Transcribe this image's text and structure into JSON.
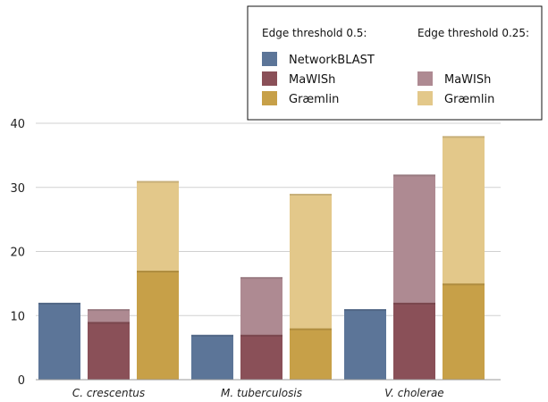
{
  "chart_data": {
    "type": "bar",
    "categories": [
      "C. crescentus",
      "M. tuberculosis",
      "V. cholerae"
    ],
    "ylim": [
      0,
      40
    ],
    "yticks": [
      0,
      10,
      20,
      30,
      40
    ],
    "grid": true,
    "legend_position": "top-right",
    "legend": {
      "group_heads": [
        "Edge threshold 0.5:",
        "Edge threshold 0.25:"
      ],
      "items": [
        {
          "label": "NetworkBLAST",
          "color": "#5c7598",
          "group": 0
        },
        {
          "label": "MaWISh",
          "color": "#8a5058",
          "group": 0
        },
        {
          "label": "Græmlin",
          "color": "#c7a048",
          "group": 0
        },
        {
          "label": "MaWISh",
          "color": "#ae8a92",
          "group": 1
        },
        {
          "label": "Græmlin",
          "color": "#e3c88a",
          "group": 1
        }
      ]
    },
    "series": [
      {
        "name": "NetworkBLAST",
        "threshold": "0.5",
        "values": [
          12,
          7,
          11
        ],
        "color": "#5c7598"
      },
      {
        "name": "MaWISh",
        "threshold": "0.5",
        "values": [
          9,
          7,
          12
        ],
        "color": "#8a5058"
      },
      {
        "name": "MaWISh",
        "threshold": "0.25",
        "values": [
          11,
          16,
          32
        ],
        "color": "#ae8a92"
      },
      {
        "name": "Græmlin",
        "threshold": "0.5",
        "values": [
          17,
          8,
          15
        ],
        "color": "#c7a048"
      },
      {
        "name": "Græmlin",
        "threshold": "0.25",
        "values": [
          31,
          29,
          38
        ],
        "color": "#e3c88a"
      }
    ]
  }
}
